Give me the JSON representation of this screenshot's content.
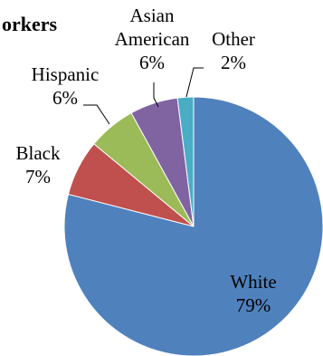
{
  "chart_data": {
    "type": "pie",
    "title": "orkers",
    "start_angle_deg": 90,
    "direction": "clockwise",
    "slices": [
      {
        "name": "White",
        "label": "White",
        "pct_label": "79%",
        "value": 79,
        "color": "#4F81BD"
      },
      {
        "name": "Black",
        "label": "Black",
        "pct_label": "7%",
        "value": 7,
        "color": "#C0504D"
      },
      {
        "name": "Hispanic",
        "label": "Hispanic",
        "pct_label": "6%",
        "value": 6,
        "color": "#9BBB59"
      },
      {
        "name": "Asian American",
        "label": "Asian\nAmerican",
        "pct_label": "6%",
        "value": 6,
        "color": "#8064A2"
      },
      {
        "name": "Other",
        "label": "Other",
        "pct_label": "2%",
        "value": 2,
        "color": "#4BACC6"
      }
    ]
  }
}
